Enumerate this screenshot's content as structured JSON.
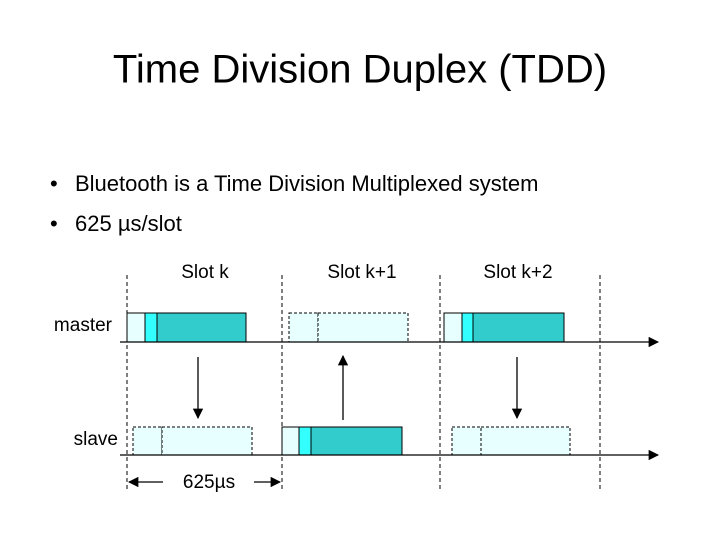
{
  "header": {
    "title": "Time Division Duplex (TDD)"
  },
  "bullets": [
    "Bluetooth is a Time Division Multiplexed system",
    "625 µs/slot"
  ],
  "diagram": {
    "slots": [
      "Slot k",
      "Slot k+1",
      "Slot k+2"
    ],
    "rows": [
      "master",
      "slave"
    ],
    "duration": "625µs"
  }
}
